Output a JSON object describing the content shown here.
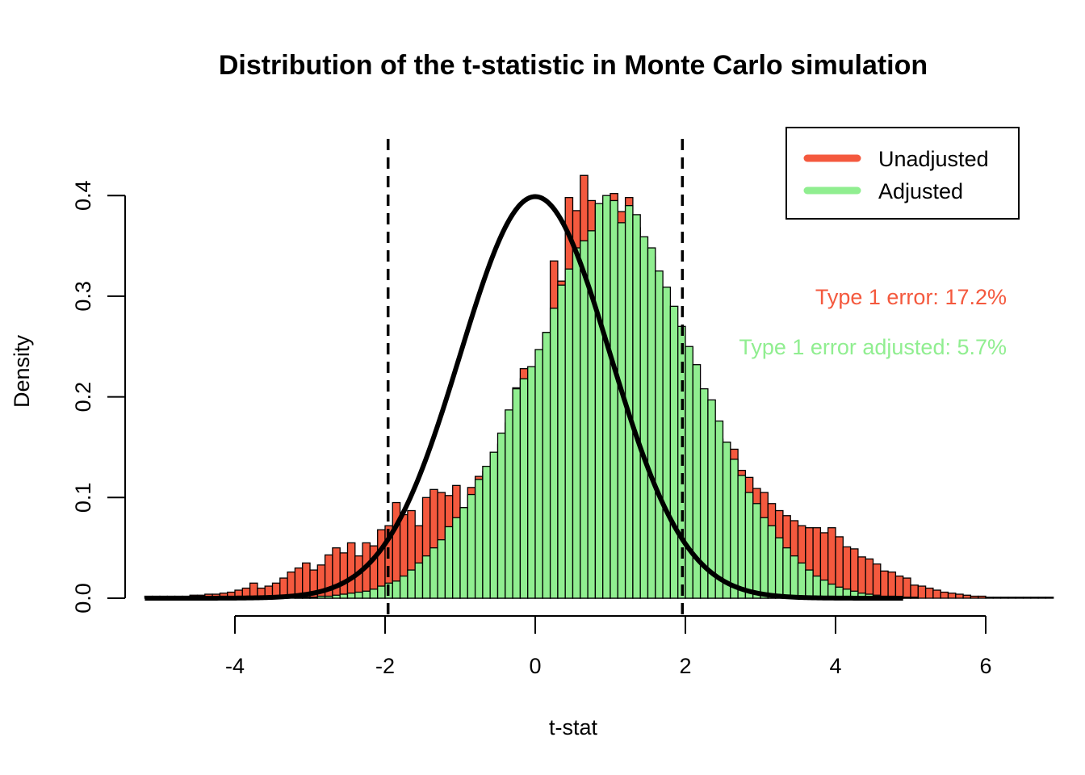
{
  "chart_data": {
    "type": "bar",
    "title": "Distribution of the t-statistic in Monte Carlo simulation",
    "xlabel": "t-stat",
    "ylabel": "Density",
    "xlim": [
      -4,
      6
    ],
    "ylim": [
      0,
      0.4
    ],
    "x_ticks": [
      "-4",
      "-2",
      "0",
      "2",
      "4",
      "6"
    ],
    "y_ticks": [
      "0.0",
      "0.1",
      "0.2",
      "0.3",
      "0.4"
    ],
    "bin_width": 0.1,
    "grid": false,
    "legend_position": "top-right",
    "critical_values": [
      -1.96,
      1.96
    ],
    "colors": {
      "unadjusted": "#F4593E",
      "adjusted": "#90EE90",
      "curve": "#000000"
    },
    "series": [
      {
        "name": "Unadjusted",
        "x_start": -5.2,
        "values": [
          0.002,
          0.002,
          0.002,
          0.002,
          0.002,
          0.002,
          0.003,
          0.003,
          0.004,
          0.004,
          0.005,
          0.006,
          0.008,
          0.01,
          0.015,
          0.01,
          0.012,
          0.015,
          0.02,
          0.026,
          0.03,
          0.035,
          0.028,
          0.033,
          0.043,
          0.05,
          0.045,
          0.055,
          0.042,
          0.055,
          0.052,
          0.068,
          0.072,
          0.095,
          0.083,
          0.087,
          0.072,
          0.1,
          0.108,
          0.105,
          0.102,
          0.112,
          0.09,
          0.11,
          0.121,
          0.126,
          0.125,
          0.153,
          0.174,
          0.209,
          0.228,
          0.226,
          0.22,
          0.264,
          0.335,
          0.315,
          0.398,
          0.385,
          0.42,
          0.395,
          0.391,
          0.378,
          0.402,
          0.384,
          0.398,
          0.368,
          0.341,
          0.339,
          0.297,
          0.283,
          0.261,
          0.241,
          0.223,
          0.206,
          0.175,
          0.17,
          0.158,
          0.155,
          0.148,
          0.127,
          0.12,
          0.109,
          0.105,
          0.094,
          0.087,
          0.082,
          0.077,
          0.072,
          0.07,
          0.07,
          0.065,
          0.07,
          0.061,
          0.051,
          0.049,
          0.041,
          0.039,
          0.034,
          0.027,
          0.026,
          0.022,
          0.02,
          0.013,
          0.012,
          0.01,
          0.008,
          0.006,
          0.005,
          0.004,
          0.003,
          0.002,
          0.002,
          0.001,
          0.001,
          0.001,
          0.001,
          0.001,
          0.001,
          0.001,
          0.001,
          0.001,
          0.0,
          0.0,
          0.0
        ]
      },
      {
        "name": "Adjusted",
        "x_start": -5.2,
        "values": [
          0.0,
          0.0,
          0.0,
          0.0,
          0.0,
          0.0,
          0.0,
          0.0,
          0.0,
          0.0,
          0.0,
          0.0,
          0.0,
          0.0,
          0.0,
          0.0,
          0.0,
          0.0,
          0.0,
          0.0,
          0.001,
          0.001,
          0.001,
          0.002,
          0.002,
          0.003,
          0.004,
          0.005,
          0.006,
          0.007,
          0.009,
          0.012,
          0.015,
          0.017,
          0.022,
          0.028,
          0.035,
          0.042,
          0.05,
          0.058,
          0.071,
          0.08,
          0.09,
          0.103,
          0.118,
          0.131,
          0.145,
          0.164,
          0.187,
          0.208,
          0.218,
          0.23,
          0.247,
          0.264,
          0.288,
          0.311,
          0.327,
          0.348,
          0.355,
          0.365,
          0.392,
          0.4,
          0.395,
          0.373,
          0.39,
          0.381,
          0.359,
          0.348,
          0.325,
          0.309,
          0.29,
          0.27,
          0.25,
          0.232,
          0.208,
          0.197,
          0.176,
          0.155,
          0.138,
          0.122,
          0.105,
          0.094,
          0.08,
          0.072,
          0.06,
          0.05,
          0.042,
          0.035,
          0.028,
          0.022,
          0.018,
          0.014,
          0.011,
          0.009,
          0.007,
          0.005,
          0.004,
          0.003,
          0.002,
          0.002,
          0.001,
          0.001,
          0.001,
          0.0,
          0.0,
          0.0,
          0.0,
          0.0,
          0.0,
          0.0,
          0.0,
          0.0,
          0.0,
          0.0,
          0.0,
          0.0,
          0.0,
          0.0,
          0.0,
          0.0,
          0.0,
          0.0,
          0.0,
          0.0
        ]
      }
    ],
    "curve": {
      "name": "standard normal density",
      "x_from": -5.2,
      "x_to": 4.9,
      "mean": 0,
      "sd": 1
    },
    "annotations": [
      {
        "text": "Type 1 error: 17.2%",
        "color": "#F4593E"
      },
      {
        "text": "Type 1 error adjusted: 5.7%",
        "color": "#90EE90"
      }
    ]
  }
}
